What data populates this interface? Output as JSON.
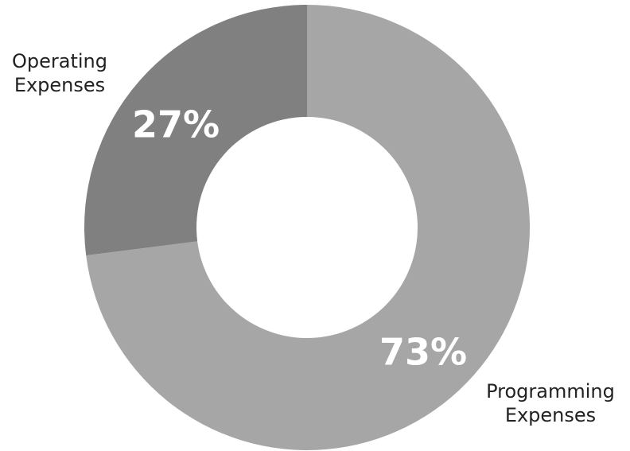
{
  "chart_data": {
    "type": "pie",
    "title": "",
    "donut": true,
    "legend": "none",
    "categories": [
      "Programming Expenses",
      "Operating Expenses"
    ],
    "values": [
      73,
      27
    ],
    "value_labels": [
      "73%",
      "27%"
    ],
    "category_label_lines": [
      [
        "Programming",
        "Expenses"
      ],
      [
        "Operating",
        "Expenses"
      ]
    ],
    "colors": [
      "#a6a6a6",
      "#808080"
    ],
    "start_angle_deg": 0,
    "direction": "clockwise"
  }
}
